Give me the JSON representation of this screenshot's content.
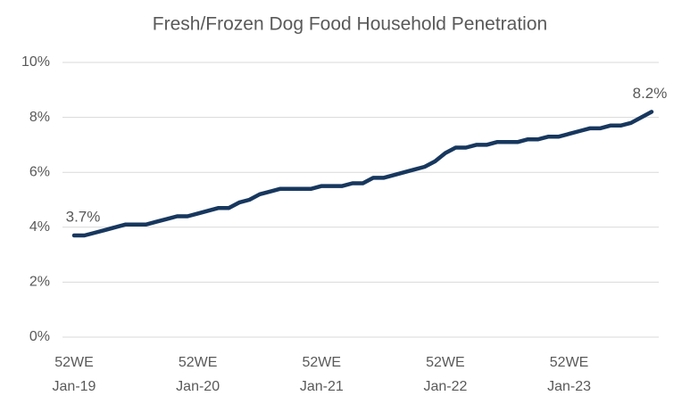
{
  "chart_data": {
    "type": "line",
    "title": "Fresh/Frozen Dog Food Household Penetration",
    "categories": [
      "52WE Jan-19",
      null,
      null,
      null,
      null,
      null,
      null,
      null,
      null,
      null,
      null,
      null,
      "52WE Jan-20",
      null,
      null,
      null,
      null,
      null,
      null,
      null,
      null,
      null,
      null,
      null,
      "52WE Jan-21",
      null,
      null,
      null,
      null,
      null,
      null,
      null,
      null,
      null,
      null,
      null,
      "52WE Jan-22",
      null,
      null,
      null,
      null,
      null,
      null,
      null,
      null,
      null,
      null,
      null,
      "52WE Jan-23",
      null,
      null,
      null,
      null,
      null,
      null,
      null,
      null
    ],
    "series": [
      {
        "name": "Household Penetration",
        "color": "#17375e",
        "values": [
          3.7,
          3.7,
          3.8,
          3.9,
          4.0,
          4.1,
          4.1,
          4.1,
          4.2,
          4.3,
          4.4,
          4.4,
          4.5,
          4.6,
          4.7,
          4.7,
          4.9,
          5.0,
          5.2,
          5.3,
          5.4,
          5.4,
          5.4,
          5.4,
          5.5,
          5.5,
          5.5,
          5.6,
          5.6,
          5.8,
          5.8,
          5.9,
          6.0,
          6.1,
          6.2,
          6.4,
          6.7,
          6.9,
          6.9,
          7.0,
          7.0,
          7.1,
          7.1,
          7.1,
          7.2,
          7.2,
          7.3,
          7.3,
          7.4,
          7.5,
          7.6,
          7.6,
          7.7,
          7.7,
          7.8,
          8.0,
          8.2
        ],
        "value_labels": [
          "3.7%",
          null,
          null,
          null,
          null,
          null,
          null,
          null,
          null,
          null,
          null,
          null,
          null,
          null,
          null,
          null,
          null,
          null,
          null,
          null,
          null,
          null,
          null,
          null,
          null,
          null,
          null,
          null,
          null,
          null,
          null,
          null,
          null,
          null,
          null,
          null,
          null,
          null,
          null,
          null,
          null,
          null,
          null,
          null,
          null,
          null,
          null,
          null,
          null,
          null,
          null,
          null,
          null,
          null,
          null,
          null,
          "8.2%"
        ]
      }
    ],
    "ylim": [
      0,
      10
    ],
    "yticks": [
      {
        "value": 0,
        "label": "0%"
      },
      {
        "value": 2,
        "label": "2%"
      },
      {
        "value": 4,
        "label": "4%"
      },
      {
        "value": 6,
        "label": "6%"
      },
      {
        "value": 8,
        "label": "8%"
      },
      {
        "value": 10,
        "label": "10%"
      }
    ],
    "grid": true
  }
}
